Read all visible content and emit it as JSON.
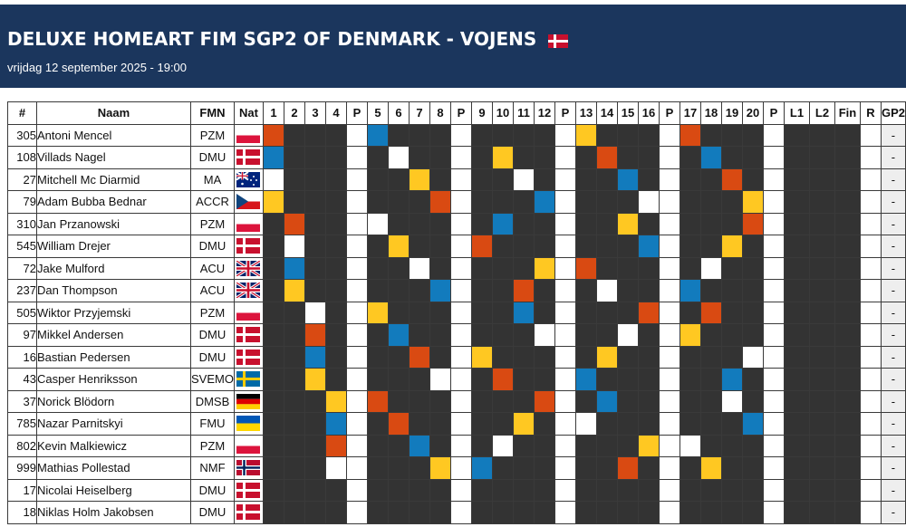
{
  "header": {
    "title": "DELUXE HOMEART FIM SGP2 OF DENMARK - VOJENS",
    "subtitle": "vrijdag 12 september 2025 - 19:00",
    "flag_icon": "denmark-flag-icon"
  },
  "table": {
    "columns": [
      "#",
      "Naam",
      "FMN",
      "Nat",
      "1",
      "2",
      "3",
      "4",
      "P",
      "5",
      "6",
      "7",
      "8",
      "P",
      "9",
      "10",
      "11",
      "12",
      "P",
      "13",
      "14",
      "15",
      "16",
      "P",
      "17",
      "18",
      "19",
      "20",
      "P",
      "L1",
      "L2",
      "Fin",
      "R",
      "GP2"
    ],
    "rows": [
      {
        "num": "305",
        "name": "Antoni Mencel",
        "fmn": "PZM",
        "nat": "poland",
        "heats": {
          "1": "red",
          "5": "blue",
          "13": "yellow",
          "17": "red"
        },
        "gp2": "-"
      },
      {
        "num": "108",
        "name": "Villads Nagel",
        "fmn": "DMU",
        "nat": "denmark",
        "heats": {
          "1": "blue",
          "6": "white",
          "10": "yellow",
          "14": "red",
          "18": "blue"
        },
        "gp2": "-"
      },
      {
        "num": "27",
        "name": "Mitchell Mc Diarmid",
        "fmn": "MA",
        "nat": "australia",
        "heats": {
          "1": "white",
          "7": "yellow",
          "11": "white",
          "15": "blue",
          "19": "red"
        },
        "gp2": "-"
      },
      {
        "num": "79",
        "name": "Adam Bubba Bednar",
        "fmn": "ACCR",
        "nat": "czech",
        "heats": {
          "1": "yellow",
          "8": "red",
          "12": "blue",
          "16": "white",
          "20": "yellow"
        },
        "gp2": "-"
      },
      {
        "num": "310",
        "name": "Jan Przanowski",
        "fmn": "PZM",
        "nat": "poland",
        "heats": {
          "2": "red",
          "5": "white",
          "10": "blue",
          "15": "yellow",
          "20": "red"
        },
        "gp2": "-"
      },
      {
        "num": "545",
        "name": "William Drejer",
        "fmn": "DMU",
        "nat": "denmark",
        "heats": {
          "2": "white",
          "6": "yellow",
          "9": "red",
          "16": "blue",
          "19": "yellow"
        },
        "gp2": "-"
      },
      {
        "num": "72",
        "name": "Jake Mulford",
        "fmn": "ACU",
        "nat": "uk",
        "heats": {
          "2": "blue",
          "7": "white",
          "12": "yellow",
          "13": "red",
          "18": "white"
        },
        "gp2": "-"
      },
      {
        "num": "237",
        "name": "Dan Thompson",
        "fmn": "ACU",
        "nat": "uk",
        "heats": {
          "2": "yellow",
          "8": "blue",
          "11": "red",
          "14": "white",
          "17": "blue"
        },
        "gp2": "-"
      },
      {
        "num": "505",
        "name": "Wiktor Przyjemski",
        "fmn": "PZM",
        "nat": "poland",
        "heats": {
          "3": "white",
          "5": "yellow",
          "11": "blue",
          "16": "red",
          "18": "red"
        },
        "gp2": "-"
      },
      {
        "num": "97",
        "name": "Mikkel Andersen",
        "fmn": "DMU",
        "nat": "denmark",
        "heats": {
          "3": "red",
          "6": "blue",
          "12": "white",
          "15": "white",
          "17": "yellow"
        },
        "gp2": "-"
      },
      {
        "num": "16",
        "name": "Bastian Pedersen",
        "fmn": "DMU",
        "nat": "denmark",
        "heats": {
          "3": "blue",
          "7": "red",
          "9": "yellow",
          "14": "yellow",
          "20": "white"
        },
        "gp2": "-"
      },
      {
        "num": "43",
        "name": "Casper Henriksson",
        "fmn": "SVEMO",
        "nat": "sweden",
        "heats": {
          "3": "yellow",
          "8": "white",
          "10": "red",
          "13": "blue",
          "19": "blue"
        },
        "gp2": "-"
      },
      {
        "num": "37",
        "name": "Norick Blödorn",
        "fmn": "DMSB",
        "nat": "germany",
        "heats": {
          "4": "yellow",
          "5": "red",
          "12": "red",
          "14": "blue",
          "19": "white"
        },
        "gp2": "-"
      },
      {
        "num": "785",
        "name": "Nazar Parnitskyi",
        "fmn": "FMU",
        "nat": "ukraine",
        "heats": {
          "4": "blue",
          "6": "red",
          "11": "yellow",
          "13": "white",
          "20": "blue"
        },
        "gp2": "-"
      },
      {
        "num": "802",
        "name": "Kevin Malkiewicz",
        "fmn": "PZM",
        "nat": "poland",
        "heats": {
          "4": "red",
          "7": "blue",
          "10": "white",
          "16": "yellow",
          "17": "white"
        },
        "gp2": "-"
      },
      {
        "num": "999",
        "name": "Mathias Pollestad",
        "fmn": "NMF",
        "nat": "norway",
        "heats": {
          "4": "white",
          "8": "yellow",
          "9": "blue",
          "15": "red",
          "18": "yellow"
        },
        "gp2": "-"
      },
      {
        "num": "17",
        "name": "Nicolai Heiselberg",
        "fmn": "DMU",
        "nat": "denmark",
        "heats": {},
        "gp2": "-"
      },
      {
        "num": "18",
        "name": "Niklas Holm Jakobsen",
        "fmn": "DMU",
        "nat": "denmark",
        "heats": {},
        "gp2": "-"
      }
    ]
  },
  "colors": {
    "header_bg": "#1b365d",
    "red": "#d94a12",
    "blue": "#127bbd",
    "yellow": "#ffc822",
    "white": "#ffffff",
    "empty": "#333333"
  }
}
